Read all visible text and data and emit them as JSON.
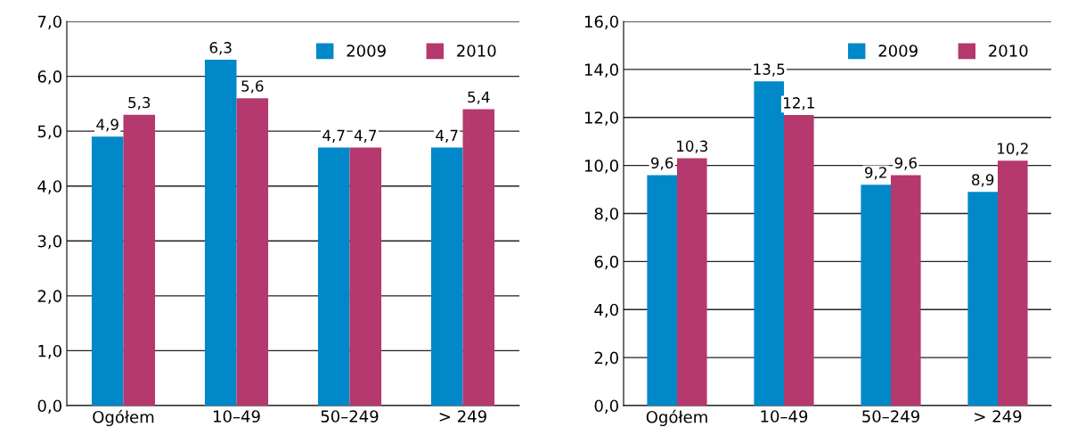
{
  "chart_data": [
    {
      "type": "bar",
      "categories": [
        "Ogółem",
        "10–49",
        "50–249",
        "> 249"
      ],
      "series": [
        {
          "name": "2009",
          "color": "#0088c8",
          "values": [
            4.9,
            6.3,
            4.7,
            4.7
          ],
          "value_labels": [
            "4,9",
            "6,3",
            "4,7",
            "4,7"
          ]
        },
        {
          "name": "2010",
          "color": "#b5386f",
          "values": [
            5.3,
            5.6,
            4.7,
            5.4
          ],
          "value_labels": [
            "5,3",
            "5,6",
            "4,7",
            "5,4"
          ]
        }
      ],
      "ylim": [
        0,
        7
      ],
      "yticks": [
        {
          "value": 0,
          "label": "0,0"
        },
        {
          "value": 1,
          "label": "1,0"
        },
        {
          "value": 2,
          "label": "2,0"
        },
        {
          "value": 3,
          "label": "3,0"
        },
        {
          "value": 4,
          "label": "4,0"
        },
        {
          "value": 5,
          "label": "5,0"
        },
        {
          "value": 6,
          "label": "6,0"
        },
        {
          "value": 7,
          "label": "7,0"
        }
      ],
      "grid": "y",
      "legend": "top right"
    },
    {
      "type": "bar",
      "categories": [
        "Ogółem",
        "10–49",
        "50–249",
        "> 249"
      ],
      "series": [
        {
          "name": "2009",
          "color": "#0088c8",
          "values": [
            9.6,
            13.5,
            9.2,
            8.9
          ],
          "value_labels": [
            "9,6",
            "13,5",
            "9,2",
            "8,9"
          ]
        },
        {
          "name": "2010",
          "color": "#b5386f",
          "values": [
            10.3,
            12.1,
            9.6,
            10.2
          ],
          "value_labels": [
            "10,3",
            "12,1",
            "9,6",
            "10,2"
          ]
        }
      ],
      "ylim": [
        0,
        16
      ],
      "yticks": [
        {
          "value": 0,
          "label": "0,0"
        },
        {
          "value": 2,
          "label": "2,0"
        },
        {
          "value": 4,
          "label": "4,0"
        },
        {
          "value": 6,
          "label": "6,0"
        },
        {
          "value": 8,
          "label": "8,0"
        },
        {
          "value": 10,
          "label": "10,0"
        },
        {
          "value": 12,
          "label": "12,0"
        },
        {
          "value": 14,
          "label": "14,0"
        },
        {
          "value": 16,
          "label": "16,0"
        }
      ],
      "grid": "y",
      "legend": "top right"
    }
  ]
}
